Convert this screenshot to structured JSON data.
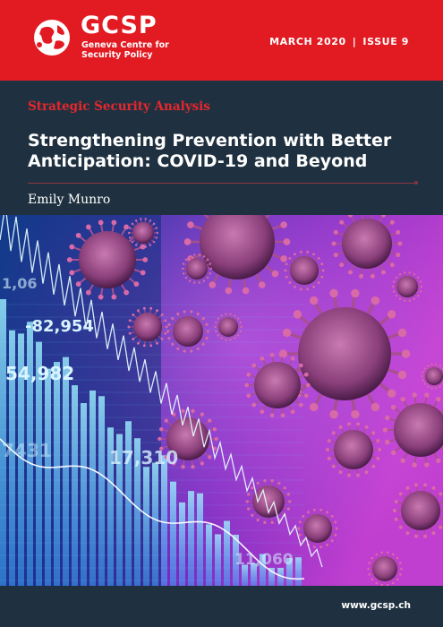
{
  "header": {
    "logo_title": "GCSP",
    "logo_sub_line1": "Geneva Centre for",
    "logo_sub_line2": "Security Policy",
    "date": "MARCH 2020",
    "separator": "|",
    "issue": "ISSUE 9"
  },
  "cover": {
    "series": "Strategic Security Analysis",
    "title_line1": "Strengthening Prevention with Better",
    "title_line2": "Anticipation: COVID-19 and Beyond",
    "author": "Emily Munro"
  },
  "image": {
    "description_icons": [
      "virus-icon",
      "data-chart-graphic"
    ],
    "numbers": [
      "-82,954",
      "54,982",
      "17,310",
      "11,060",
      "7431",
      "1,06"
    ]
  },
  "footer": {
    "url": "www.gcsp.ch"
  },
  "colors": {
    "brand_red": "#e21b23",
    "navy": "#1f3140",
    "series_red": "#e8262d"
  }
}
